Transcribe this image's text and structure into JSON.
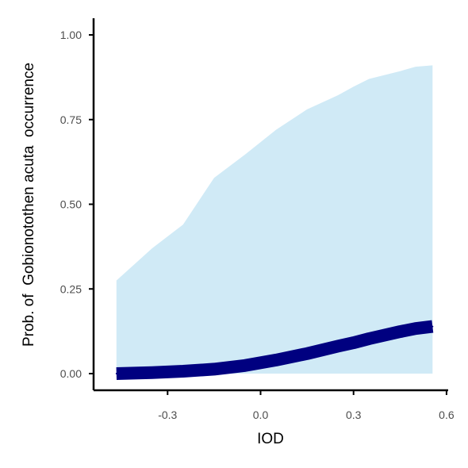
{
  "chart_data": {
    "type": "line",
    "xlabel": "IOD",
    "ylabel": "Prob. of  Gobionotothen acuta  occurrence",
    "xlim": [
      -0.53,
      0.6
    ],
    "ylim": [
      -0.05,
      1.05
    ],
    "x_ticks": [
      -0.3,
      0.0,
      0.3,
      0.6
    ],
    "x_tick_labels": [
      "-0.3",
      "0.0",
      "0.3",
      "0.6"
    ],
    "y_ticks": [
      0.0,
      0.25,
      0.5,
      0.75,
      1.0
    ],
    "y_tick_labels": [
      "0.00",
      "0.25",
      "0.50",
      "0.75",
      "1.00"
    ],
    "grid": false,
    "legend": "none",
    "colors": {
      "line": "#000080",
      "ribbon": "#d0eaf6",
      "axis": "#000000"
    },
    "series": [
      {
        "x": [
          -0.465,
          -0.35,
          -0.25,
          -0.15,
          -0.05,
          0.05,
          0.15,
          0.25,
          0.3,
          0.35,
          0.45,
          0.5,
          0.555
        ],
        "y": [
          0.0,
          0.003,
          0.007,
          0.013,
          0.024,
          0.04,
          0.059,
          0.081,
          0.091,
          0.103,
          0.124,
          0.133,
          0.139
        ],
        "lower": [
          0.0,
          0.0,
          0.0,
          0.0,
          0.0,
          0.0,
          0.0,
          0.0,
          0.0,
          0.0,
          0.0,
          0.0,
          0.0
        ],
        "upper": [
          0.275,
          0.37,
          0.44,
          0.578,
          0.647,
          0.72,
          0.78,
          0.822,
          0.847,
          0.87,
          0.893,
          0.906,
          0.91
        ]
      }
    ]
  }
}
